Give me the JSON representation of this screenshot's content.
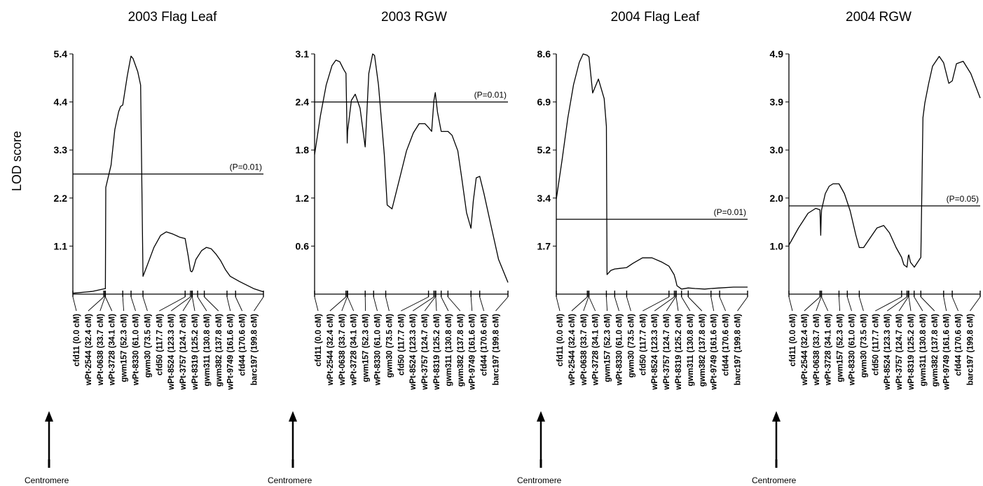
{
  "figure": {
    "y_axis_title": "LOD score",
    "centromere_label": "Centromere"
  },
  "markers": [
    "cfd11 (0.0 cM)",
    "wPt-2544 (32.4 cM)",
    "wPt-0638 (33.7 cM)",
    "wPt-3728 (34.1 cM)",
    "gwm157 (52.3 cM)",
    "wPt-8330 (61.0 cM)",
    "gwm30 (73.5 cM)",
    "cfd50 (117.7 cM)",
    "wPt-8524 (123.3 cM)",
    "wPt-3757 (124.7 cM)",
    "wPt-8319 (125.2 cM)",
    "gwm311 (130.8 cM)",
    "gwm382 (137.8 cM)",
    "wPt-9749 (161.6 cM)",
    "cfd44 (170.6 cM)",
    "barc197 (199.8 cM)"
  ],
  "marker_positions_cM": [
    0.0,
    32.4,
    33.7,
    34.1,
    52.3,
    61.0,
    73.5,
    117.7,
    123.3,
    124.7,
    125.2,
    130.8,
    137.8,
    161.6,
    170.6,
    199.8
  ],
  "chart_data": [
    {
      "type": "line",
      "title": "2003 Flag Leaf",
      "ylabel": "LOD score",
      "xlabel": "",
      "x_unit": "cM",
      "yticks": [
        "5.4",
        "4.4",
        "3.3",
        "2.2",
        "1.1"
      ],
      "ylim": [
        0,
        5.4
      ],
      "xlim": [
        0,
        199.8
      ],
      "threshold": {
        "value": 2.7,
        "label": "(P=0.01)"
      },
      "series": [
        {
          "x": [
            0,
            20,
            33,
            34.1,
            34.5,
            40,
            44,
            48,
            50,
            52.3,
            57,
            60,
            61,
            63,
            68,
            71,
            73.5,
            78,
            85,
            92,
            98,
            105,
            112,
            117.7,
            121,
            123.3,
            124.7,
            126,
            129,
            135,
            140,
            145,
            150,
            155,
            160,
            165,
            175,
            190,
            199.8
          ],
          "y": [
            0.02,
            0.06,
            0.12,
            0.12,
            2.4,
            2.9,
            3.7,
            4.1,
            4.22,
            4.25,
            4.9,
            5.25,
            5.35,
            5.3,
            5.0,
            4.7,
            0.4,
            0.65,
            1.05,
            1.32,
            1.4,
            1.35,
            1.28,
            1.25,
            0.85,
            0.52,
            0.5,
            0.55,
            0.78,
            0.98,
            1.05,
            1.02,
            0.9,
            0.75,
            0.55,
            0.4,
            0.28,
            0.12,
            0.05
          ]
        }
      ]
    },
    {
      "type": "line",
      "title": "2003 RGW",
      "ylabel": "",
      "xlabel": "",
      "x_unit": "cM",
      "yticks": [
        "3.1",
        "2.4",
        "1.8",
        "1.2",
        "0.6"
      ],
      "ylim": [
        0,
        3.1
      ],
      "xlim": [
        0,
        199.8
      ],
      "threshold": {
        "value": 2.48,
        "label": "(P=0.01)"
      },
      "series": [
        {
          "x": [
            0,
            6,
            12,
            18,
            22,
            26,
            30,
            32.4,
            33.7,
            34.1,
            38,
            42,
            47,
            52.3,
            56,
            60,
            62,
            66,
            72,
            75,
            80,
            88,
            95,
            102,
            108,
            114,
            117.7,
            121,
            123.3,
            124.7,
            125.2,
            127,
            130.8,
            134,
            137.8,
            142,
            148,
            152,
            157,
            161.6,
            164,
            167,
            170.6,
            175,
            182,
            190,
            199.8
          ],
          "y": [
            1.8,
            2.3,
            2.7,
            2.95,
            3.02,
            3.0,
            2.9,
            2.85,
            1.95,
            2.1,
            2.5,
            2.58,
            2.4,
            1.9,
            2.85,
            3.1,
            3.08,
            2.7,
            1.8,
            1.15,
            1.1,
            1.5,
            1.85,
            2.08,
            2.2,
            2.2,
            2.15,
            2.1,
            2.5,
            2.6,
            2.55,
            2.35,
            2.1,
            2.1,
            2.1,
            2.05,
            1.85,
            1.5,
            1.05,
            0.85,
            1.2,
            1.5,
            1.52,
            1.3,
            0.9,
            0.45,
            0.15
          ]
        }
      ]
    },
    {
      "type": "line",
      "title": "2004 Flag Leaf",
      "ylabel": "",
      "xlabel": "",
      "x_unit": "cM",
      "yticks": [
        "8.6",
        "6.9",
        "5.2",
        "3.4",
        "1.7"
      ],
      "ylim": [
        0,
        8.6
      ],
      "xlim": [
        0,
        199.8
      ],
      "threshold": {
        "value": 2.68,
        "label": "(P=0.01)"
      },
      "series": [
        {
          "x": [
            0,
            6,
            12,
            18,
            24,
            28,
            32.4,
            33.7,
            34.1,
            38,
            44,
            50,
            52.3,
            53,
            57,
            61,
            66,
            73.5,
            80,
            90,
            100,
            110,
            117.7,
            123,
            124.7,
            126,
            130.8,
            137.8,
            145,
            155,
            161.6,
            170.6,
            185,
            199.8
          ],
          "y": [
            3.4,
            4.8,
            6.3,
            7.5,
            8.3,
            8.6,
            8.55,
            8.5,
            8.5,
            7.2,
            7.7,
            7.0,
            6.0,
            0.7,
            0.85,
            0.9,
            0.92,
            0.95,
            1.1,
            1.3,
            1.3,
            1.15,
            1.0,
            0.7,
            0.5,
            0.3,
            0.18,
            0.22,
            0.2,
            0.18,
            0.2,
            0.22,
            0.25,
            0.25
          ]
        }
      ]
    },
    {
      "type": "line",
      "title": "2004 RGW",
      "ylabel": "",
      "xlabel": "",
      "x_unit": "cM",
      "yticks": [
        "4.9",
        "3.9",
        "3.0",
        "2.0",
        "1.0"
      ],
      "ylim": [
        0,
        4.9
      ],
      "xlim": [
        0,
        199.8
      ],
      "threshold": {
        "value": 1.8,
        "label": "(P=0.05)"
      },
      "series": [
        {
          "x": [
            0,
            10,
            20,
            28,
            32.4,
            33.2,
            33.7,
            34.1,
            38,
            42,
            46,
            52.3,
            58,
            64,
            70,
            73.5,
            78,
            85,
            92,
            99,
            105,
            112,
            117.7,
            120,
            123.3,
            124.7,
            125.2,
            127,
            131,
            137.8,
            140,
            142,
            146,
            150,
            157,
            161.6,
            167,
            170.6,
            175,
            182,
            190,
            199.8
          ],
          "y": [
            1.0,
            1.35,
            1.65,
            1.75,
            1.72,
            1.2,
            1.55,
            1.72,
            2.05,
            2.2,
            2.25,
            2.25,
            2.05,
            1.7,
            1.2,
            0.95,
            0.95,
            1.15,
            1.35,
            1.4,
            1.25,
            0.95,
            0.75,
            0.6,
            0.55,
            0.78,
            0.8,
            0.65,
            0.55,
            0.75,
            3.6,
            3.9,
            4.3,
            4.65,
            4.85,
            4.72,
            4.3,
            4.35,
            4.7,
            4.75,
            4.5,
            4.0
          ]
        }
      ]
    }
  ]
}
